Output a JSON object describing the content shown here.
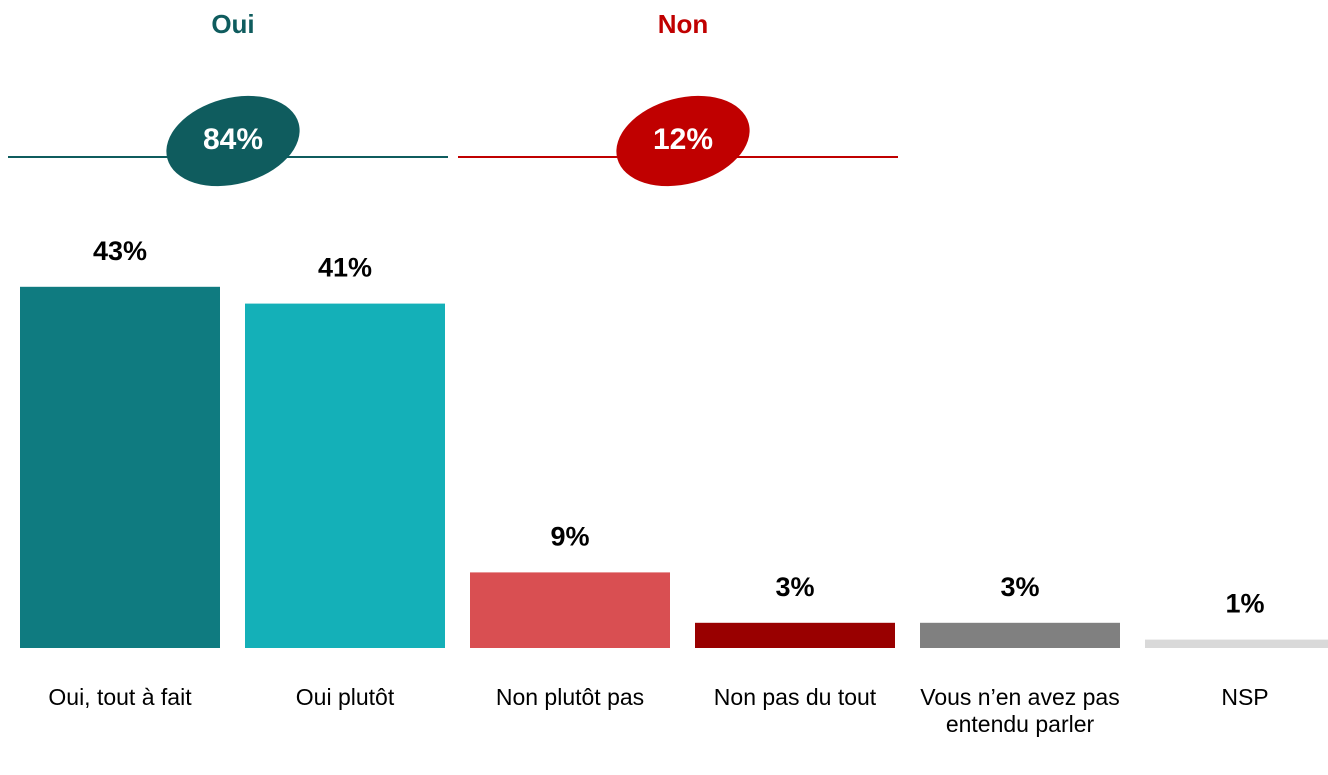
{
  "chart_data": {
    "type": "bar",
    "categories": [
      "Oui, tout à fait",
      "Oui plutôt",
      "Non plutôt pas",
      "Non pas du tout",
      "Vous n’en avez pas entendu parler",
      "NSP"
    ],
    "values": [
      43,
      41,
      9,
      3,
      3,
      1
    ],
    "value_labels": [
      "43%",
      "41%",
      "9%",
      "3%",
      "3%",
      "1%"
    ],
    "colors": [
      "#0f7b80",
      "#14b0b8",
      "#d94f52",
      "#990000",
      "#808080",
      "#d9d9d9"
    ],
    "ylim": [
      0,
      50
    ],
    "groups": [
      {
        "name": "Oui",
        "value": 84,
        "value_label": "84%",
        "color": "#0f5c5e"
      },
      {
        "name": "Non",
        "value": 12,
        "value_label": "12%",
        "color": "#c00000"
      }
    ]
  }
}
